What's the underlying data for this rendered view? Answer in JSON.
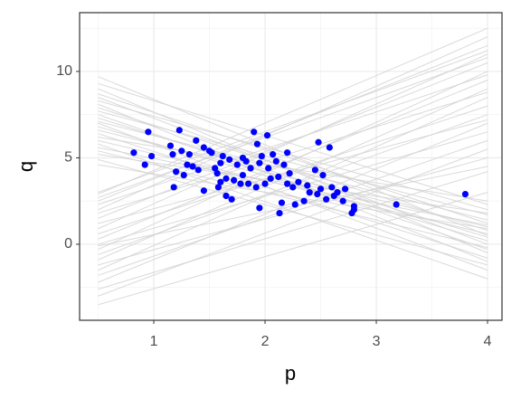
{
  "chart_data": {
    "type": "scatter",
    "x_label": "p",
    "y_label": "q",
    "color": "#0000ff",
    "line_color": "#d3d3d3",
    "xlim": [
      0.333,
      4.13
    ],
    "ylim": [
      -4.4,
      13.4
    ],
    "xticks": [
      1,
      2,
      3,
      4
    ],
    "yticks": [
      0,
      5,
      10
    ],
    "x_minor_ticks": [
      0.5,
      1.5,
      2.5,
      3.5
    ],
    "y_minor_ticks": [
      -2.5,
      2.5,
      7.5,
      12.5
    ],
    "grid": true,
    "lines": {
      "x": [
        0.5,
        4
      ],
      "y": [
        [
          9.7,
          0.5
        ],
        [
          9.3,
          2.3
        ],
        [
          9.0,
          -0.5
        ],
        [
          8.7,
          1.2
        ],
        [
          8.5,
          0.0
        ],
        [
          8.3,
          2.0
        ],
        [
          8.1,
          -1.0
        ],
        [
          7.9,
          0.8
        ],
        [
          7.7,
          1.7
        ],
        [
          7.5,
          -0.3
        ],
        [
          7.3,
          0.4
        ],
        [
          7.1,
          1.4
        ],
        [
          7.0,
          -1.5
        ],
        [
          6.8,
          0.2
        ],
        [
          6.6,
          1.0
        ],
        [
          6.4,
          -0.8
        ],
        [
          6.2,
          2.5
        ],
        [
          6.0,
          0.6
        ],
        [
          5.8,
          -2.0
        ],
        [
          5.6,
          1.1
        ],
        [
          5.4,
          -0.2
        ],
        [
          5.2,
          1.8
        ],
        [
          4.9,
          -1.2
        ],
        [
          4.6,
          0.9
        ],
        [
          -3.5,
          3.0
        ],
        [
          -3.0,
          5.5
        ],
        [
          -2.6,
          4.2
        ],
        [
          -2.2,
          7.0
        ],
        [
          -1.8,
          6.0
        ],
        [
          -1.5,
          8.5
        ],
        [
          -1.2,
          5.0
        ],
        [
          -0.9,
          9.0
        ],
        [
          -0.6,
          7.5
        ],
        [
          -0.3,
          10.0
        ],
        [
          0.0,
          6.5
        ],
        [
          0.3,
          9.5
        ],
        [
          0.6,
          8.0
        ],
        [
          0.9,
          11.0
        ],
        [
          1.2,
          7.2
        ],
        [
          1.5,
          10.5
        ],
        [
          1.8,
          8.8
        ],
        [
          2.0,
          12.0
        ],
        [
          2.3,
          9.8
        ],
        [
          2.5,
          11.5
        ],
        [
          2.7,
          10.8
        ],
        [
          2.9,
          12.5
        ],
        [
          3.0,
          11.2
        ],
        [
          -0.1,
          4.5
        ]
      ]
    },
    "x": [
      0.82,
      0.92,
      0.95,
      0.98,
      1.15,
      1.17,
      1.18,
      1.2,
      1.23,
      1.25,
      1.27,
      1.3,
      1.32,
      1.35,
      1.38,
      1.4,
      1.45,
      1.45,
      1.5,
      1.52,
      1.55,
      1.57,
      1.58,
      1.6,
      1.6,
      1.62,
      1.65,
      1.65,
      1.68,
      1.7,
      1.72,
      1.75,
      1.78,
      1.8,
      1.8,
      1.83,
      1.85,
      1.87,
      1.9,
      1.92,
      1.93,
      1.95,
      1.95,
      1.97,
      2.0,
      2.02,
      2.03,
      2.05,
      2.07,
      2.1,
      2.12,
      2.13,
      2.15,
      2.17,
      2.2,
      2.2,
      2.22,
      2.25,
      2.27,
      2.3,
      2.35,
      2.38,
      2.4,
      2.45,
      2.47,
      2.48,
      2.5,
      2.52,
      2.55,
      2.58,
      2.6,
      2.62,
      2.65,
      2.7,
      2.72,
      2.78,
      2.8,
      2.8,
      3.18,
      3.8
    ],
    "y": [
      5.3,
      4.6,
      6.5,
      5.1,
      5.7,
      5.2,
      3.3,
      4.2,
      6.6,
      5.4,
      4.0,
      4.6,
      5.2,
      4.5,
      6.0,
      4.3,
      5.6,
      3.1,
      5.4,
      5.3,
      4.4,
      4.1,
      3.3,
      4.7,
      3.6,
      5.1,
      2.8,
      3.8,
      4.9,
      2.6,
      3.7,
      4.6,
      3.5,
      5.0,
      4.0,
      4.8,
      3.5,
      4.4,
      6.5,
      3.3,
      5.8,
      2.1,
      4.7,
      5.1,
      3.5,
      6.3,
      4.4,
      3.8,
      5.2,
      4.8,
      3.9,
      1.8,
      2.4,
      4.6,
      5.3,
      3.5,
      4.1,
      3.3,
      2.3,
      3.6,
      2.5,
      3.4,
      3.0,
      4.3,
      2.9,
      5.9,
      3.2,
      4.0,
      2.6,
      5.6,
      3.3,
      2.8,
      3.0,
      2.5,
      3.2,
      1.8,
      2.2,
      2.0,
      2.3,
      2.9
    ]
  }
}
